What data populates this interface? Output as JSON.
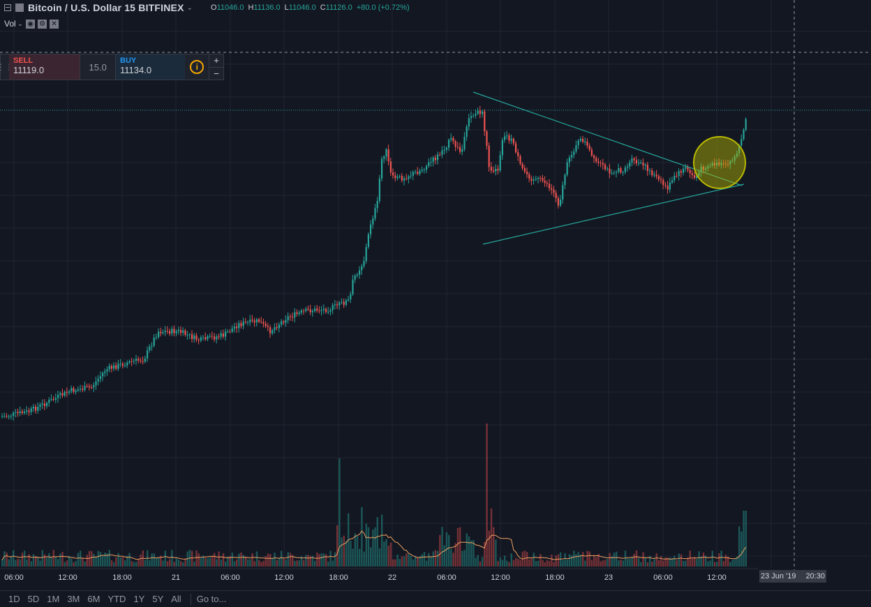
{
  "header": {
    "title": "Bitcoin / U.S. Dollar  15  BITFINEX",
    "ohlc": [
      {
        "key": "O",
        "value": "11046.0"
      },
      {
        "key": "H",
        "value": "11136.0"
      },
      {
        "key": "L",
        "value": "11046.0"
      },
      {
        "key": "C",
        "value": "11126.0"
      }
    ],
    "change": "+80.0 (+0.72%)"
  },
  "indicator": {
    "label": "Vol"
  },
  "trade_panel": {
    "sell_label": "SELL",
    "sell_price": "11119.0",
    "quantity": "15.0",
    "buy_label": "BUY",
    "buy_price": "11134.0",
    "info_symbol": "i",
    "plus": "+",
    "minus": "−"
  },
  "colors": {
    "background": "#131722",
    "up": "#26a69a",
    "down": "#ef5350",
    "trendline": "#26a69a",
    "highlight": "#b8b800",
    "volume_ma": "#f0a060"
  },
  "chart_data": {
    "type": "candlestick",
    "price_axis_shown": false,
    "last_price": 11126.0,
    "time_labels": [
      "06:00",
      "12:00",
      "18:00",
      "21",
      "06:00",
      "12:00",
      "18:00",
      "22",
      "06:00",
      "12:00",
      "18:00",
      "23",
      "06:00",
      "12:00"
    ],
    "crosshair": {
      "date": "23 Jun '19",
      "time": "20:30"
    },
    "annotations": [
      "symmetrical triangle trendlines",
      "highlighted breakout circle"
    ]
  },
  "footer": {
    "ranges": [
      "1D",
      "5D",
      "1M",
      "3M",
      "6M",
      "YTD",
      "1Y",
      "5Y",
      "All"
    ],
    "goto_label": "Go to..."
  }
}
